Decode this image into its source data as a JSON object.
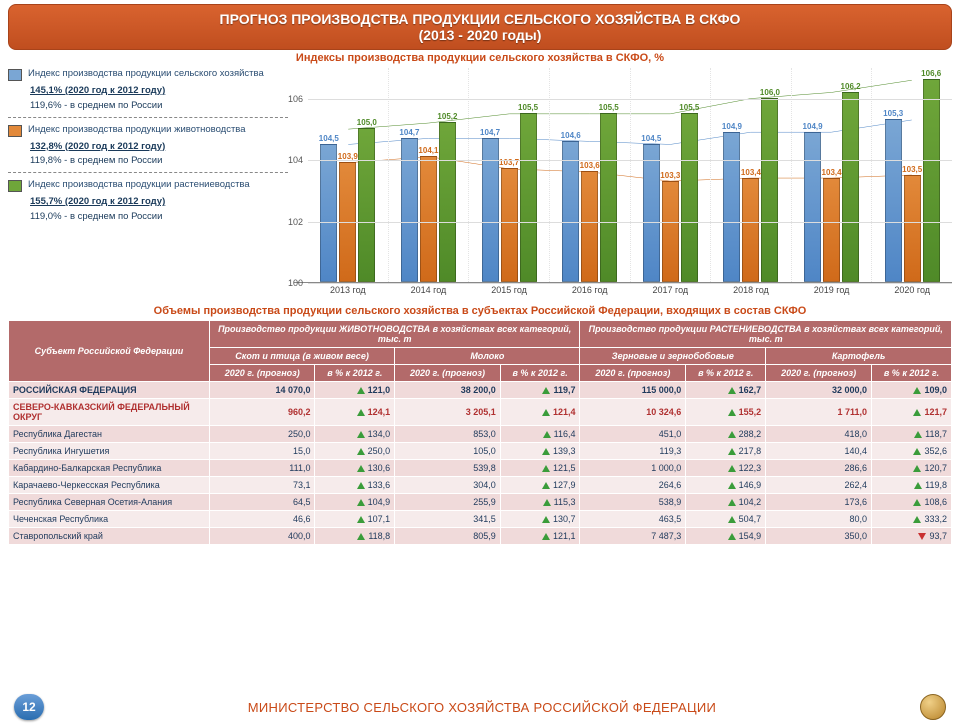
{
  "header": {
    "line1": "ПРОГНОЗ ПРОИЗВОДСТВА ПРОДУКЦИИ СЕЛЬСКОГО ХОЗЯЙСТВА В СКФО",
    "line2": "(2013 - 2020 годы)"
  },
  "chart": {
    "title": "Индексы производства продукции сельского хозяйства в СКФО, %",
    "ylim": [
      100,
      107
    ],
    "yticks": [
      100,
      102,
      104,
      106
    ],
    "background_color": "#ffffff",
    "grid_color": "#dddddd",
    "years": [
      "2013 год",
      "2014 год",
      "2015 год",
      "2016 год",
      "2017 год",
      "2018 год",
      "2019 год",
      "2020 год"
    ],
    "series": [
      {
        "name": "Индекс производства продукции сельского хозяйства",
        "color": "#7aa6d4",
        "line_color": "#4f86c6",
        "values": [
          104.5,
          104.7,
          104.7,
          104.6,
          104.5,
          104.9,
          104.9,
          105.3
        ],
        "summary_pct": "145,1%  (2020 год к 2012 году)",
        "summary_ru": "119,6% - в среднем по России"
      },
      {
        "name": "Индекс производства продукции животноводства",
        "color": "#e2893a",
        "line_color": "#d06a1a",
        "values": [
          103.9,
          104.1,
          103.7,
          103.6,
          103.3,
          103.4,
          103.4,
          103.5
        ],
        "summary_pct": "132,8%  (2020 год к 2012 году)",
        "summary_ru": "119,8% - в среднем по России"
      },
      {
        "name": "Индекс производства продукции растениеводства",
        "color": "#6fa63a",
        "line_color": "#4f8a28",
        "values": [
          105.0,
          105.2,
          105.5,
          105.5,
          105.5,
          106.0,
          106.2,
          106.6
        ],
        "summary_pct": "155,7%  (2020 год к 2012 году)",
        "summary_ru": "119,0% - в среднем по России"
      }
    ]
  },
  "table": {
    "title": "Объемы производства продукции сельского хозяйства в субъектах Российской Федерации, входящих в состав СКФО",
    "group_row": [
      "Субъект Российской Федерации",
      "Производство продукции ЖИВОТНОВОДСТВА в хозяйствах всех категорий, тыс. т",
      "Производство продукции РАСТЕНИЕВОДСТВА в хозяйствах всех категорий, тыс. т"
    ],
    "sub_row": [
      "Скот и птица (в живом весе)",
      "Молоко",
      "Зерновые и зернобобовые",
      "Картофель"
    ],
    "col_row": [
      "2020 г. (прогноз)",
      "в % к 2012 г.",
      "2020 г. (прогноз)",
      "в % к 2012 г.",
      "2020 г. (прогноз)",
      "в % к 2012 г.",
      "2020 г. (прогноз)",
      "в % к 2012 г."
    ],
    "rows": [
      {
        "name": "РОССИЙСКАЯ ФЕДЕРАЦИЯ",
        "bold": true,
        "v": [
          "14 070,0",
          "121,0",
          "38 200,0",
          "119,7",
          "115 000,0",
          "162,7",
          "32 000,0",
          "109,0"
        ],
        "d": [
          "",
          "up",
          "",
          "up",
          "",
          "up",
          "",
          "up"
        ]
      },
      {
        "name": "СЕВЕРО-КАВКАЗСКИЙ ФЕДЕРАЛЬНЫЙ ОКРУГ",
        "hl": true,
        "v": [
          "960,2",
          "124,1",
          "3 205,1",
          "121,4",
          "10 324,6",
          "155,2",
          "1 711,0",
          "121,7"
        ],
        "d": [
          "",
          "up",
          "",
          "up",
          "",
          "up",
          "",
          "up"
        ]
      },
      {
        "name": "Республика Дагестан",
        "v": [
          "250,0",
          "134,0",
          "853,0",
          "116,4",
          "451,0",
          "288,2",
          "418,0",
          "118,7"
        ],
        "d": [
          "",
          "up",
          "",
          "up",
          "",
          "up",
          "",
          "up"
        ]
      },
      {
        "name": "Республика Ингушетия",
        "v": [
          "15,0",
          "250,0",
          "105,0",
          "139,3",
          "119,3",
          "217,8",
          "140,4",
          "352,6"
        ],
        "d": [
          "",
          "up",
          "",
          "up",
          "",
          "up",
          "",
          "up"
        ]
      },
      {
        "name": "Кабардино-Балкарская Республика",
        "v": [
          "111,0",
          "130,6",
          "539,8",
          "121,5",
          "1 000,0",
          "122,3",
          "286,6",
          "120,7"
        ],
        "d": [
          "",
          "up",
          "",
          "up",
          "",
          "up",
          "",
          "up"
        ]
      },
      {
        "name": "Карачаево-Черкесская Республика",
        "v": [
          "73,1",
          "133,6",
          "304,0",
          "127,9",
          "264,6",
          "146,9",
          "262,4",
          "119,8"
        ],
        "d": [
          "",
          "up",
          "",
          "up",
          "",
          "up",
          "",
          "up"
        ]
      },
      {
        "name": "Республика Северная Осетия-Алания",
        "v": [
          "64,5",
          "104,9",
          "255,9",
          "115,3",
          "538,9",
          "104,2",
          "173,6",
          "108,6"
        ],
        "d": [
          "",
          "up",
          "",
          "up",
          "",
          "up",
          "",
          "up"
        ]
      },
      {
        "name": "Чеченская Республика",
        "v": [
          "46,6",
          "107,1",
          "341,5",
          "130,7",
          "463,5",
          "504,7",
          "80,0",
          "333,2"
        ],
        "d": [
          "",
          "up",
          "",
          "up",
          "",
          "up",
          "",
          "up"
        ]
      },
      {
        "name": "Ставропольский край",
        "v": [
          "400,0",
          "118,8",
          "805,9",
          "121,1",
          "7 487,3",
          "154,9",
          "350,0",
          "93,7"
        ],
        "d": [
          "",
          "up",
          "",
          "up",
          "",
          "up",
          "",
          "dn"
        ]
      }
    ]
  },
  "footer": {
    "page": "12",
    "text": "МИНИСТЕРСТВО СЕЛЬСКОГО ХОЗЯЙСТВА РОССИЙСКОЙ ФЕДЕРАЦИИ"
  }
}
